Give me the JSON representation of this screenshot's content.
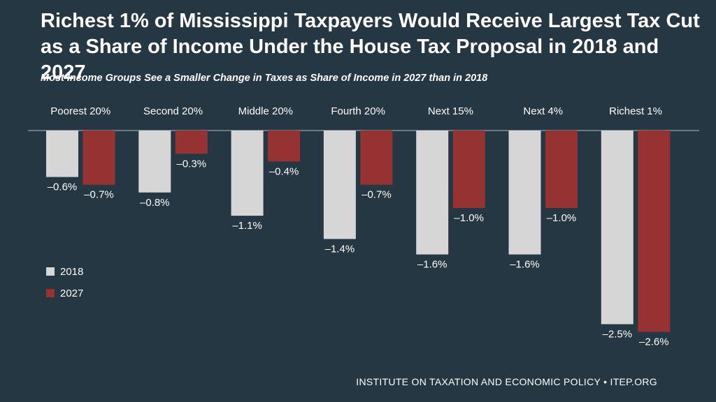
{
  "title": "Richest 1% of Mississippi Taxpayers Would Receive Largest Tax Cut as a Share of Income Under the House Tax Proposal in 2018 and 2027",
  "subtitle": "Most Income Groups See a Smaller Change in Taxes as Share of Income in 2027 than in 2018",
  "footer": "INSTITUTE ON TAXATION AND ECONOMIC POLICY • ITEP.ORG",
  "colors": {
    "background": "#253742",
    "series_2018": "#d6d6d6",
    "series_2027": "#963232",
    "axis": "#b8bcc0",
    "text": "#ffffff"
  },
  "chart_data": {
    "type": "bar",
    "title": "Richest 1% of Mississippi Taxpayers Would Receive Largest Tax Cut as a Share of Income Under the House Tax Proposal in 2018 and 2027",
    "subtitle": "Most Income Groups See a Smaller Change in Taxes as Share of Income in 2027 than in 2018",
    "categories": [
      "Poorest 20%",
      "Second 20%",
      "Middle 20%",
      "Fourth 20%",
      "Next 15%",
      "Next 4%",
      "Richest 1%"
    ],
    "series": [
      {
        "name": "2018",
        "values": [
          -0.6,
          -0.8,
          -1.1,
          -1.4,
          -1.6,
          -1.6,
          -2.5
        ],
        "labels": [
          "–0.6%",
          "–0.8%",
          "–1.1%",
          "–1.4%",
          "–1.6%",
          "–1.6%",
          "–2.5%"
        ]
      },
      {
        "name": "2027",
        "values": [
          -0.7,
          -0.3,
          -0.4,
          -0.7,
          -1.0,
          -1.0,
          -2.6
        ],
        "labels": [
          "–0.7%",
          "–0.3%",
          "–0.4%",
          "–0.7%",
          "–1.0%",
          "–1.0%",
          "–2.6%"
        ]
      }
    ],
    "xlabel": "",
    "ylabel": "",
    "ylim": [
      -2.6,
      0
    ],
    "grid": false,
    "legend": "left"
  }
}
